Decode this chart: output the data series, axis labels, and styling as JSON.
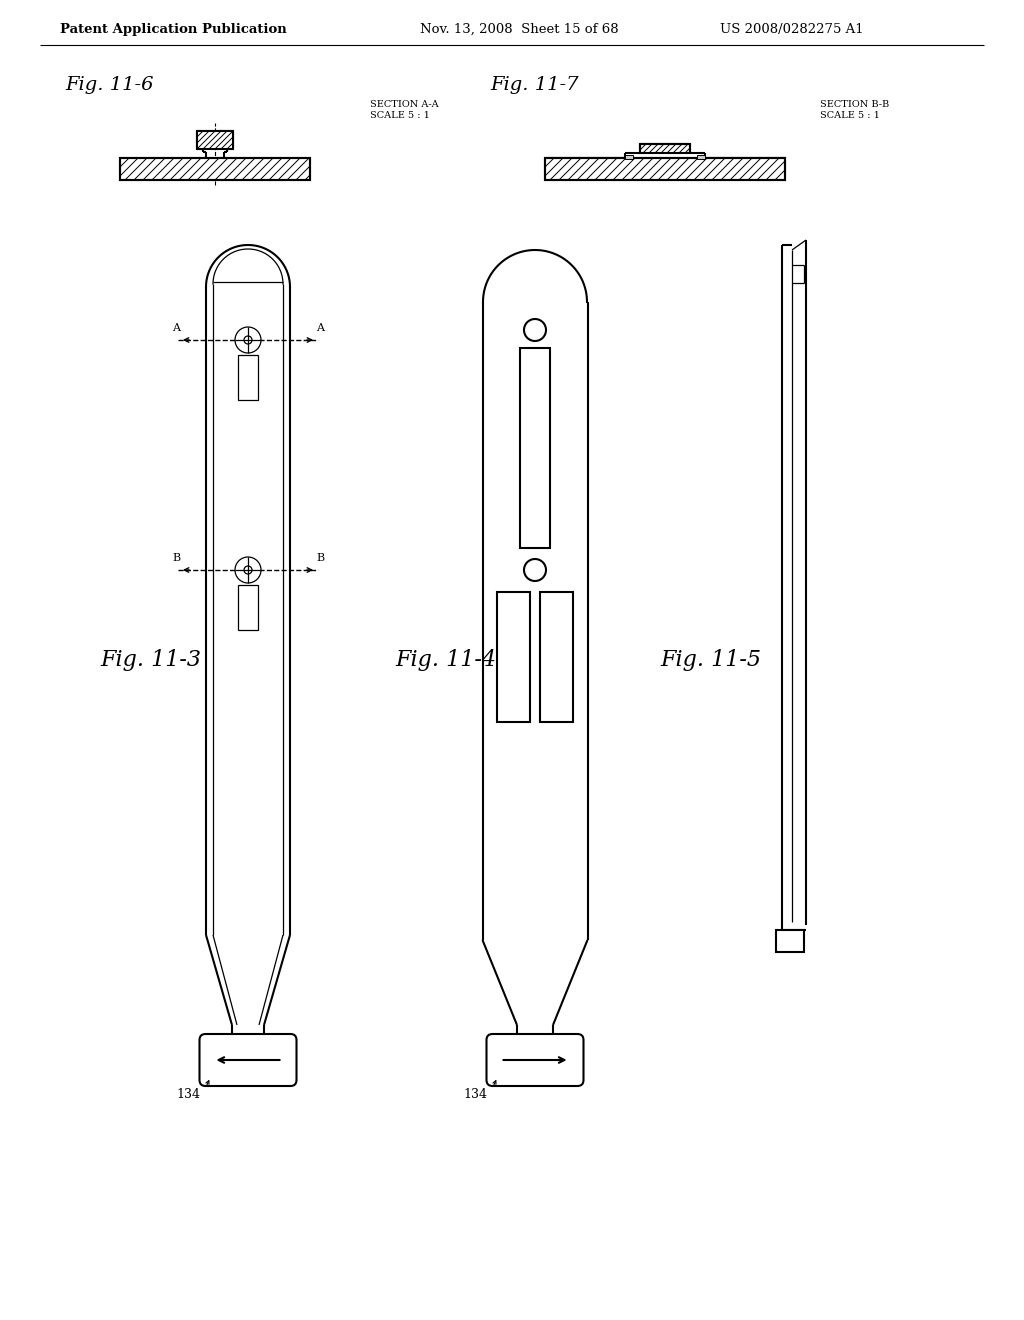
{
  "bg_color": "#ffffff",
  "line_color": "#000000",
  "header_text_left": "Patent Application Publication",
  "header_text_mid": "Nov. 13, 2008  Sheet 15 of 68",
  "header_text_right": "US 2008/0282275 A1",
  "ref_134": "134"
}
